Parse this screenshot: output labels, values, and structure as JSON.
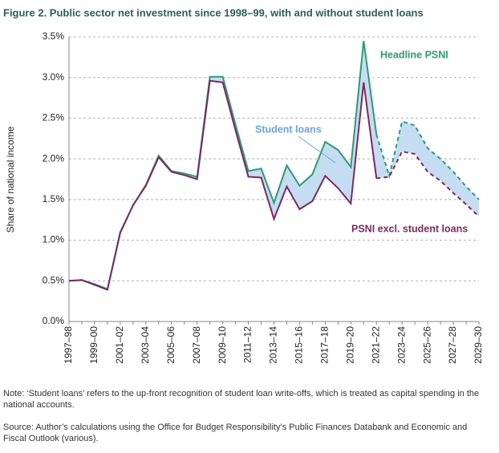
{
  "chart_data": {
    "type": "line",
    "title": "Figure 2. Public sector net investment since 1998–99, with and without student loans",
    "ylabel": "Share of national income",
    "categories": [
      "1997–98",
      null,
      "1999–00",
      null,
      "2001–02",
      null,
      "2003–04",
      null,
      "2005–06",
      null,
      "2007–08",
      null,
      "2009–10",
      null,
      "2011–12",
      null,
      "2013–14",
      null,
      "2015–16",
      null,
      "2017–18",
      null,
      "2019–20",
      null,
      "2021–22",
      null,
      "2023–24",
      null,
      "2025–26",
      null,
      "2027–28",
      null,
      "2029–30"
    ],
    "series": [
      {
        "name": "Headline PSNI",
        "color": "#2e9a72",
        "values": [
          0.5,
          0.51,
          0.46,
          0.4,
          1.1,
          1.43,
          1.68,
          2.04,
          1.85,
          1.82,
          1.78,
          3.01,
          3.01,
          2.42,
          1.85,
          1.88,
          1.46,
          1.92,
          1.67,
          1.81,
          2.21,
          2.11,
          1.9,
          3.45,
          2.3,
          1.79,
          2.46,
          2.41,
          2.13,
          2.0,
          1.84,
          1.66,
          1.5
        ]
      },
      {
        "name": "PSNI excl. student loans",
        "color": "#7b2a5e",
        "values": [
          0.5,
          0.51,
          0.45,
          0.39,
          1.09,
          1.43,
          1.67,
          2.02,
          1.84,
          1.8,
          1.75,
          2.96,
          2.94,
          2.35,
          1.78,
          1.77,
          1.26,
          1.66,
          1.38,
          1.48,
          1.79,
          1.64,
          1.45,
          2.94,
          1.76,
          1.78,
          2.09,
          2.06,
          1.84,
          1.73,
          1.58,
          1.44,
          1.29
        ]
      }
    ],
    "band": {
      "name": "Student loans",
      "color": "#c5dcf2",
      "label_color": "#6aa6dc"
    },
    "forecast_from": "2021–22",
    "ylim": [
      0,
      3.5
    ],
    "yticks": [
      {
        "value": 0,
        "label": "0.0%"
      },
      {
        "value": 0.5,
        "label": "0.5%"
      },
      {
        "value": 1,
        "label": "1.0%"
      },
      {
        "value": 1.5,
        "label": "1.5%"
      },
      {
        "value": 2,
        "label": "2.0%"
      },
      {
        "value": 2.5,
        "label": "2.5%"
      },
      {
        "value": 3,
        "label": "3.0%"
      },
      {
        "value": 3.5,
        "label": "3.5%"
      }
    ],
    "grid": true,
    "note": "Note: ‘Student loans’ refers to the up-front recognition of student loan write-offs, which is treated as capital spending in the national accounts.",
    "source": "Source: Author’s calculations using the Office for Budget Responsibility’s Public Finances Databank and Economic and Fiscal Outlook (various)."
  }
}
